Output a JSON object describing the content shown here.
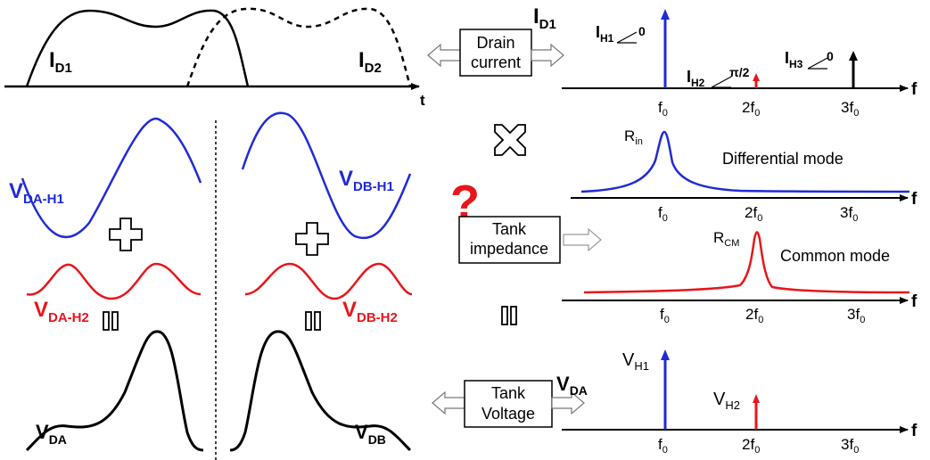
{
  "colors": {
    "harmonic1": "#1f2bd6",
    "harmonic2": "#e8161b",
    "black": "#000000",
    "question_mark": "#e8161b"
  },
  "top_left": {
    "label_id1": "I",
    "sub_id1": "D1",
    "label_id2": "I",
    "sub_id2": "D2",
    "axis_label": "t"
  },
  "bottom_left": {
    "va_h1": "V",
    "va_h1_sub": "DA-H1",
    "vb_h1": "V",
    "vb_h1_sub": "DB-H1",
    "va_h2": "V",
    "va_h2_sub": "DA-H2",
    "vb_h2": "V",
    "vb_h2_sub": "DB-H2",
    "vda": "V",
    "vda_sub": "DA",
    "vdb": "V",
    "vdb_sub": "DB"
  },
  "middle": {
    "drain_box_line1": "Drain",
    "drain_box_line2": "current",
    "drain_out_label": "I",
    "drain_out_sub": "D1",
    "question": "?",
    "tank_box_line1": "Tank",
    "tank_box_line2": "impedance",
    "volt_box_line1": "Tank",
    "volt_box_line2": "Voltage",
    "volt_out_label": "V",
    "volt_out_sub": "DA"
  },
  "spectrum_current": {
    "axis_label": "f",
    "ticks": [
      {
        "base": "f",
        "pre": "",
        "sub": "0"
      },
      {
        "base": "f",
        "pre": "2",
        "sub": "0"
      },
      {
        "base": "f",
        "pre": "3",
        "sub": "0"
      }
    ],
    "h1": {
      "base": "I",
      "sub": "H1",
      "phase": "0"
    },
    "h2": {
      "base": "I",
      "sub": "H2",
      "phase": "π/2"
    },
    "h3": {
      "base": "I",
      "sub": "H3",
      "phase": "0"
    }
  },
  "spectrum_diff": {
    "axis_label": "f",
    "peak_label": "R",
    "peak_sub": "in",
    "mode_label": "Differential mode",
    "ticks": [
      {
        "base": "f",
        "pre": "",
        "sub": "0"
      },
      {
        "base": "f",
        "pre": "2",
        "sub": "0"
      },
      {
        "base": "f",
        "pre": "3",
        "sub": "0"
      }
    ]
  },
  "spectrum_cm": {
    "axis_label": "f",
    "peak_label": "R",
    "peak_sub": "CM",
    "mode_label": "Common mode",
    "ticks": [
      {
        "base": "f",
        "pre": "",
        "sub": "0"
      },
      {
        "base": "f",
        "pre": "2",
        "sub": "0"
      },
      {
        "base": "f",
        "pre": "3",
        "sub": "0"
      }
    ]
  },
  "spectrum_voltage": {
    "axis_label": "f",
    "h1": {
      "base": "V",
      "sub": "H1"
    },
    "h2": {
      "base": "V",
      "sub": "H2"
    },
    "ticks": [
      {
        "base": "f",
        "pre": "",
        "sub": "0"
      },
      {
        "base": "f",
        "pre": "2",
        "sub": "0"
      },
      {
        "base": "f",
        "pre": "3",
        "sub": "0"
      }
    ]
  }
}
